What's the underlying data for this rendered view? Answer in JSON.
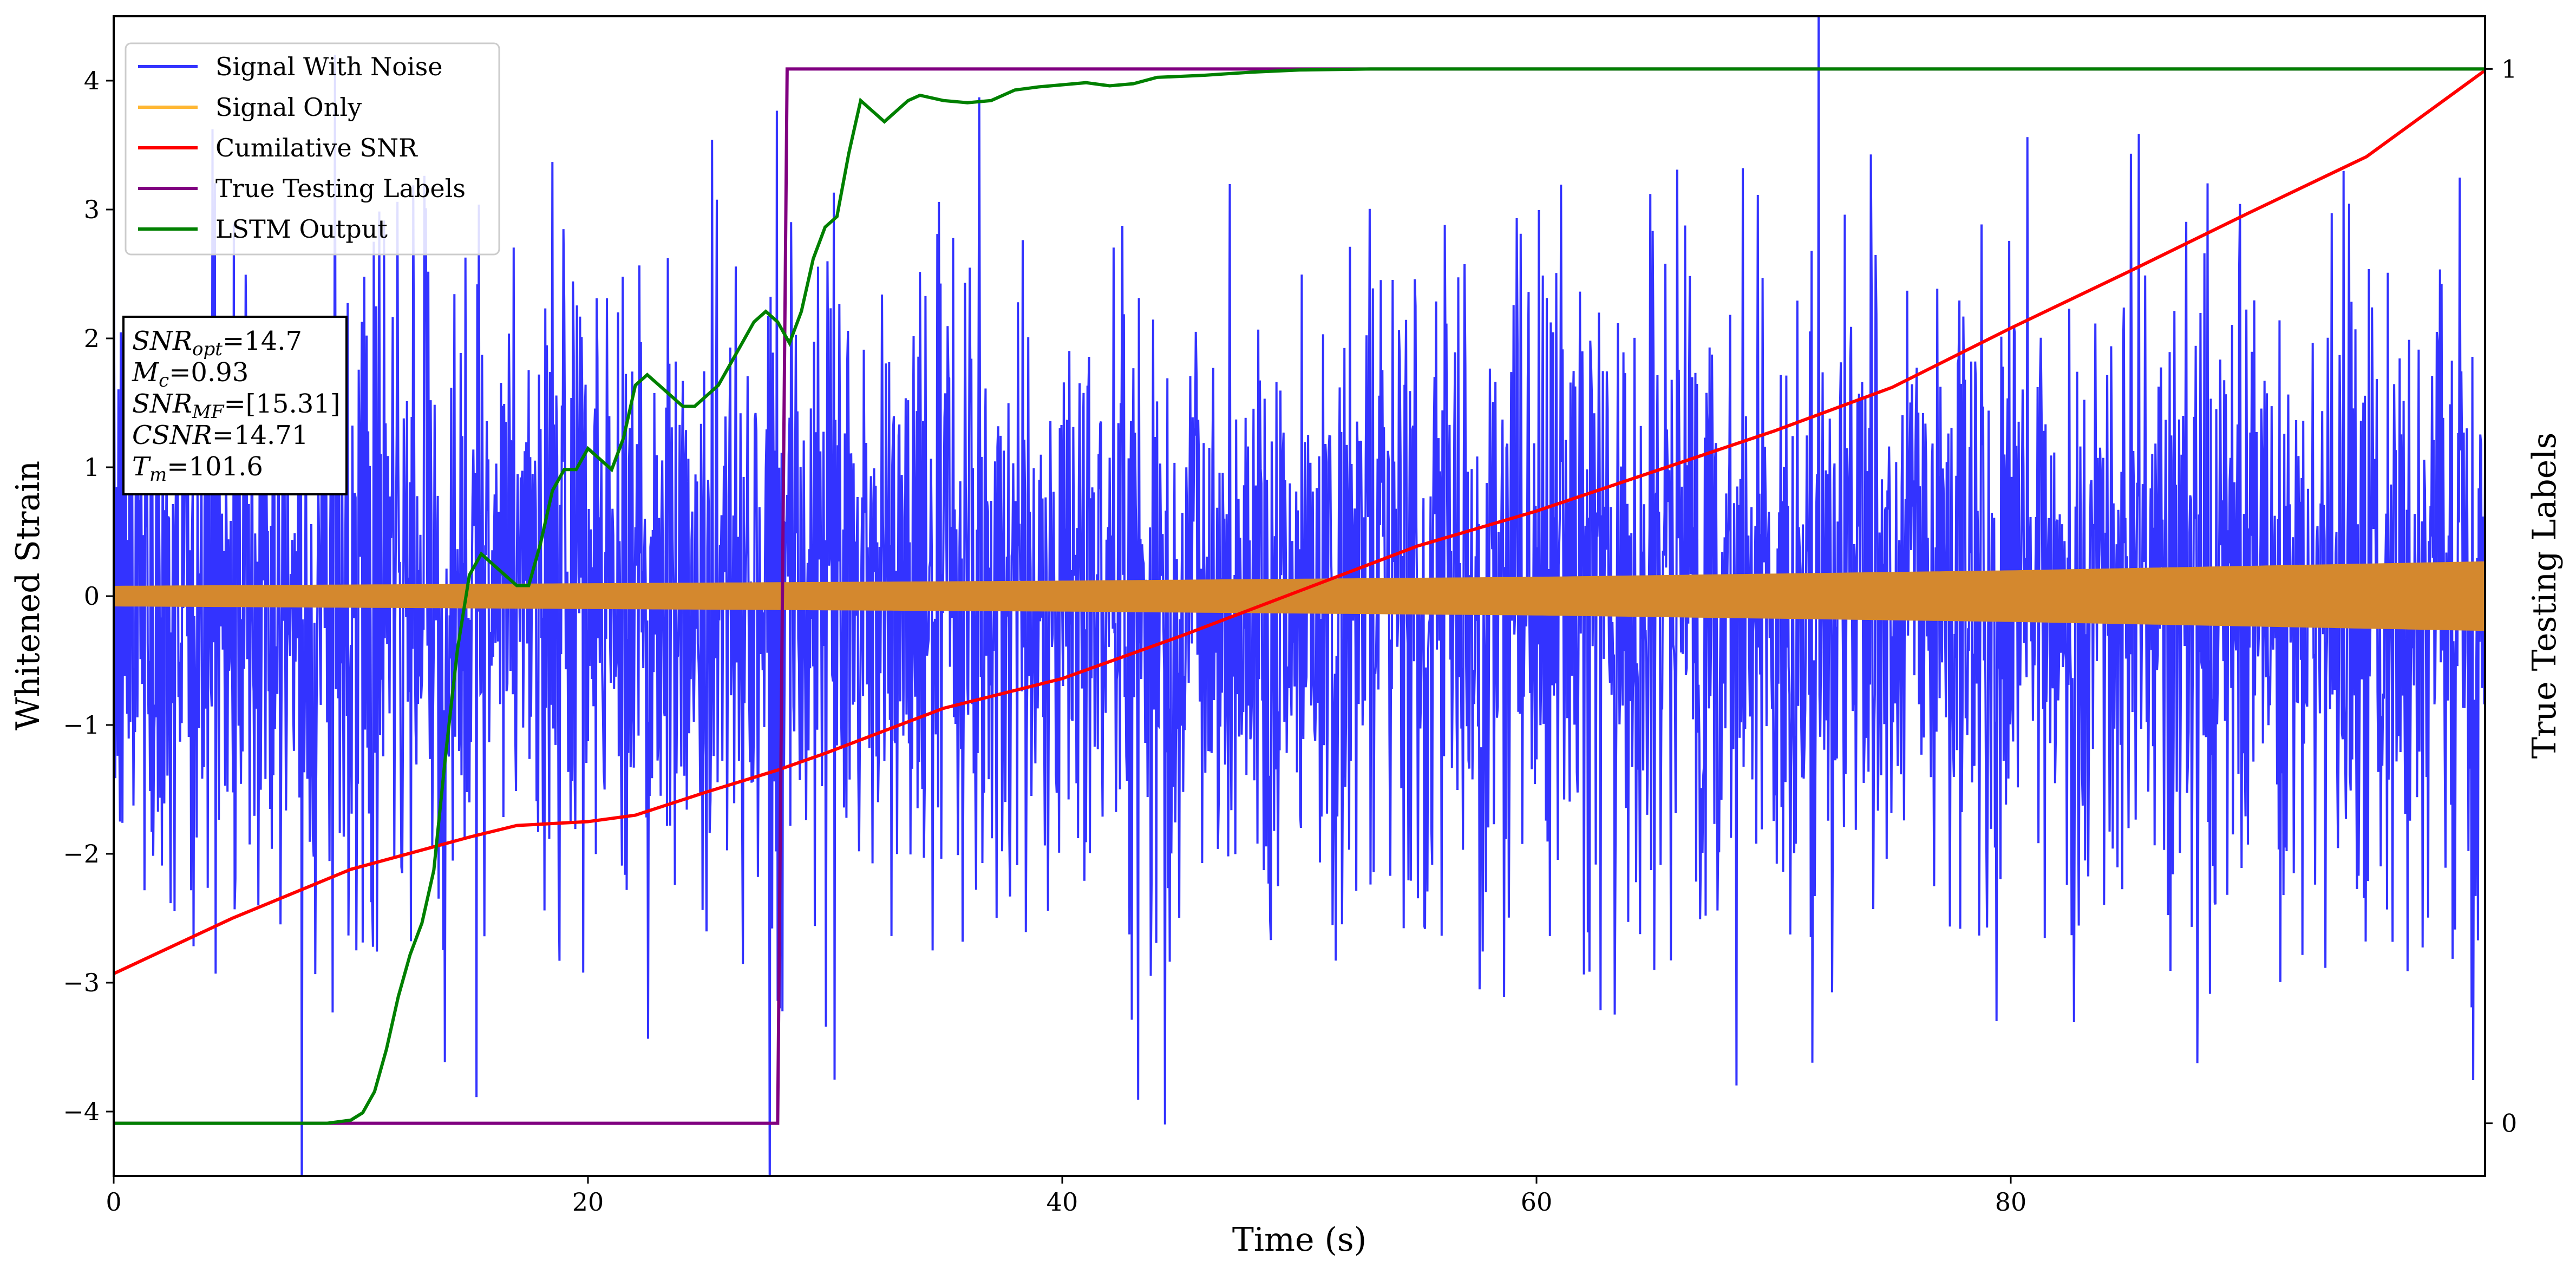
{
  "chart_data": {
    "type": "line",
    "title": "",
    "xlabel": "Time (s)",
    "ylabel": "Whitened Strain",
    "y2label": "True Testing Labels",
    "xlim": [
      0,
      100
    ],
    "ylim": [
      -4.5,
      4.5
    ],
    "y2lim": [
      -0.05,
      1.05
    ],
    "x_ticks": [
      0,
      20,
      40,
      60,
      80
    ],
    "x_tick_labels": [
      "0",
      "20",
      "40",
      "60",
      "80"
    ],
    "y_ticks": [
      -4,
      -3,
      -2,
      -1,
      0,
      1,
      2,
      3,
      4
    ],
    "y_tick_labels": [
      "−4",
      "−3",
      "−2",
      "−1",
      "0",
      "1",
      "2",
      "3",
      "4"
    ],
    "y2_ticks": [
      0,
      1
    ],
    "y2_tick_labels": [
      "0",
      "1"
    ],
    "grid": false,
    "legend_position": "top-left",
    "legend": [
      {
        "name": "Signal With Noise",
        "color": "#3333ff"
      },
      {
        "name": "Signal Only",
        "color": "#ffb733"
      },
      {
        "name": "Cumilative SNR",
        "color": "#ff0000"
      },
      {
        "name": "True Testing Labels",
        "color": "#800080"
      },
      {
        "name": "LSTM Output",
        "color": "#008000"
      }
    ],
    "colors": {
      "noise": "#3333ff",
      "signal": "#d4882e",
      "csnr": "#ff0000",
      "labels": "#800080",
      "lstm": "#008000"
    },
    "series": [
      {
        "name": "Cumilative SNR",
        "axis": "left",
        "x": [
          0,
          5,
          10,
          15,
          17,
          20,
          22,
          25,
          28,
          30,
          35,
          40,
          45,
          50,
          55,
          60,
          65,
          70,
          75,
          80,
          85,
          90,
          95,
          100
        ],
        "y": [
          -2.93,
          -2.5,
          -2.12,
          -1.87,
          -1.78,
          -1.75,
          -1.7,
          -1.52,
          -1.35,
          -1.22,
          -0.87,
          -0.64,
          -0.31,
          0.04,
          0.39,
          0.66,
          0.97,
          1.28,
          1.62,
          2.08,
          2.52,
          2.97,
          3.41,
          4.08
        ]
      },
      {
        "name": "True Testing Labels",
        "axis": "right",
        "x": [
          0,
          28.0,
          28.4,
          100
        ],
        "y": [
          0,
          0,
          1,
          1
        ]
      },
      {
        "name": "LSTM Output",
        "axis": "right",
        "x": [
          0,
          9,
          10,
          10.5,
          11,
          11.5,
          12,
          12.5,
          13,
          13.5,
          14,
          14.5,
          15,
          15.5,
          16,
          16.5,
          17,
          17.5,
          18,
          18.5,
          19,
          19.5,
          20,
          20.5,
          21,
          21.5,
          22,
          22.5,
          23,
          23.5,
          24,
          24.5,
          25,
          25.5,
          26,
          26.5,
          27,
          27.5,
          28,
          28.5,
          29,
          29.5,
          30,
          30.5,
          31,
          31.5,
          32,
          32.5,
          33,
          33.5,
          34,
          35,
          36,
          37,
          38,
          39,
          40,
          41,
          42,
          43,
          44,
          45,
          46,
          48,
          50,
          53,
          56,
          60,
          70,
          80,
          90,
          100
        ],
        "y": [
          0,
          0,
          0.003,
          0.01,
          0.03,
          0.07,
          0.12,
          0.16,
          0.19,
          0.24,
          0.35,
          0.45,
          0.52,
          0.54,
          0.53,
          0.52,
          0.51,
          0.51,
          0.55,
          0.6,
          0.62,
          0.62,
          0.64,
          0.63,
          0.62,
          0.65,
          0.7,
          0.71,
          0.7,
          0.69,
          0.68,
          0.68,
          0.69,
          0.7,
          0.72,
          0.74,
          0.76,
          0.77,
          0.76,
          0.74,
          0.77,
          0.82,
          0.85,
          0.86,
          0.92,
          0.97,
          0.96,
          0.95,
          0.96,
          0.97,
          0.975,
          0.97,
          0.968,
          0.97,
          0.98,
          0.983,
          0.985,
          0.987,
          0.984,
          0.986,
          0.992,
          0.993,
          0.994,
          0.997,
          0.999,
          1.0,
          1.0,
          1.0,
          1.0,
          1.0,
          1.0,
          1.0
        ]
      },
      {
        "name": "Signal Only",
        "axis": "left",
        "x": [
          0,
          20,
          40,
          60,
          80,
          100
        ],
        "amplitude": [
          0.08,
          0.1,
          0.12,
          0.15,
          0.2,
          0.27
        ]
      },
      {
        "name": "Signal With Noise",
        "axis": "left",
        "x_range": [
          0,
          100
        ],
        "typical_range": [
          -1.8,
          2.2
        ],
        "max_peak": 4.2,
        "min_peak": -4.1
      }
    ]
  },
  "info_box": [
    {
      "var": "SNR",
      "sub": "opt",
      "value": "=14.7"
    },
    {
      "var": "M",
      "sub": "c",
      "value": "=0.93"
    },
    {
      "var": "SNR",
      "sub": "MF",
      "value": "=[15.31]"
    },
    {
      "var": "CSNR",
      "sub": "",
      "value": "=14.71"
    },
    {
      "var": "T",
      "sub": "m",
      "value": "=101.6"
    }
  ]
}
